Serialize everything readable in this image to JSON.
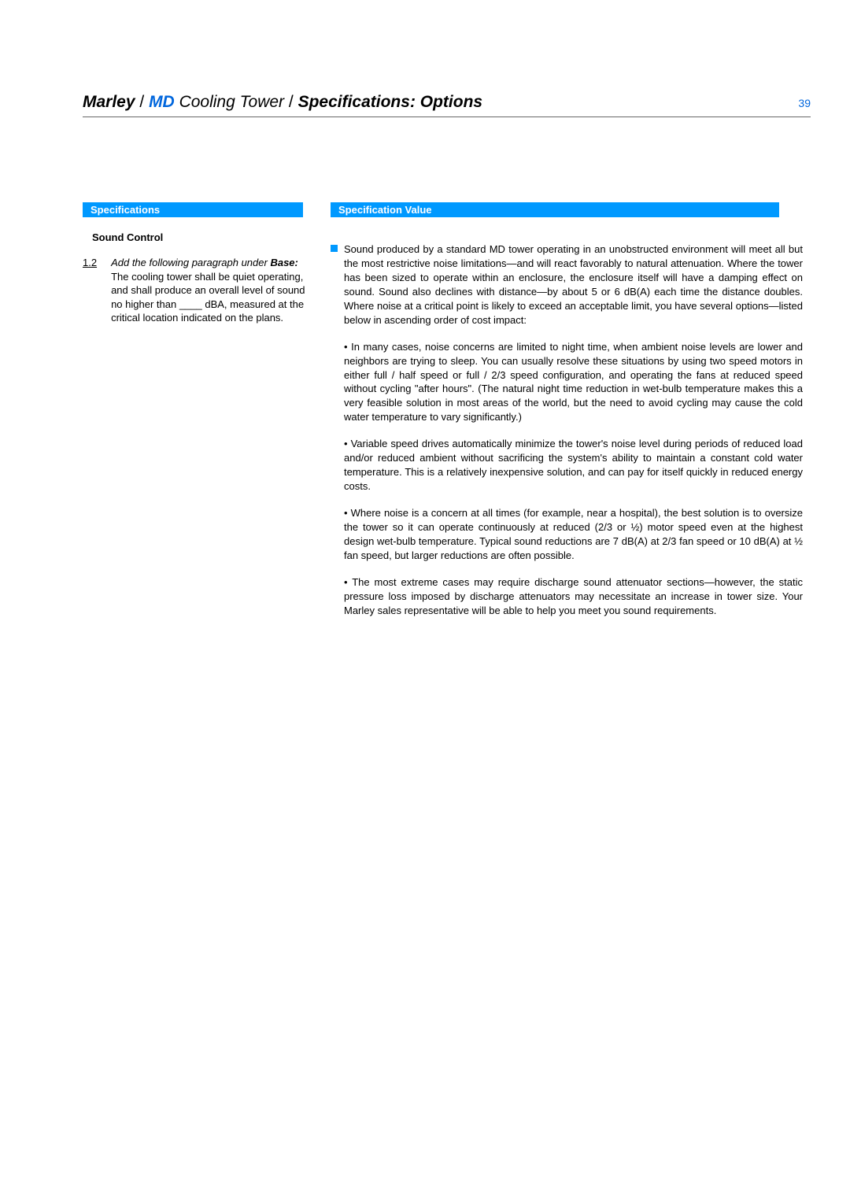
{
  "header": {
    "brand": "Marley",
    "sep1": " / ",
    "model": "MD",
    "product": " Cooling Tower",
    "sep2": " / ",
    "spec": "Specifications: Options",
    "page_number": "39"
  },
  "left": {
    "bar_label": "Specifications",
    "subsection": "Sound Control",
    "item_number": "1.2",
    "instruction": "Add the following paragraph under ",
    "base_label": "Base:",
    "body": " The cooling tower shall be quiet operating, and shall produce an overall level of sound no higher than ____ dBA, measured at the critical location indicated on the plans."
  },
  "right": {
    "bar_label": "Specification Value",
    "intro": "Sound produced by a standard MD tower operating in an unobstructed environment will meet all but the most restrictive noise limitations—and will react favorably to natural attenuation. Where the tower has been sized to operate within an enclosure, the enclosure itself will have a damping effect on sound. Sound also declines with distance—by about 5 or 6 dB(A) each time the distance doubles. Where noise at a critical point is likely to exceed an acceptable limit, you have several options—listed below in ascending order of cost impact:",
    "bullets": [
      "• In many cases, noise concerns are limited to night time, when ambient noise levels are lower and neighbors are trying to sleep. You can usually resolve these situations by using two speed motors in either full / half speed or full / 2/3 speed configuration, and operating the fans at reduced speed without cycling \"after hours\". (The natural night time reduction in wet-bulb temperature makes this a very feasible solution in most areas of the world, but the need to avoid cycling may cause the cold water temperature to vary significantly.)",
      "• Variable speed drives automatically minimize the tower's noise level during periods of reduced load and/or reduced ambient without sacrificing the system's ability to maintain a constant cold water temperature. This is a relatively inexpensive solution, and can pay for itself quickly in reduced energy costs.",
      "• Where noise is a concern at all times (for example, near a hospital), the best solution is to oversize the tower so it can operate continuously at reduced (2/3 or ½) motor speed even at the highest design wet-bulb temperature. Typical sound reductions are 7 dB(A) at 2/3 fan speed or 10 dB(A) at ½ fan speed, but larger reductions are often possible.",
      "• The most extreme cases may require discharge sound attenuator sections—however, the static pressure loss imposed by discharge attenuators may necessitate an increase in tower size. Your Marley sales representative will be able to help you meet you sound requirements."
    ]
  },
  "colors": {
    "accent_blue": "#0099ff",
    "link_blue": "#0066dd",
    "text": "#000000",
    "divider": "#666666",
    "background": "#ffffff"
  },
  "typography": {
    "header_fontsize": 21,
    "body_fontsize": 13,
    "page_number_fontsize": 14,
    "bar_fontsize": 13,
    "font_family": "Arial, Helvetica, sans-serif"
  }
}
